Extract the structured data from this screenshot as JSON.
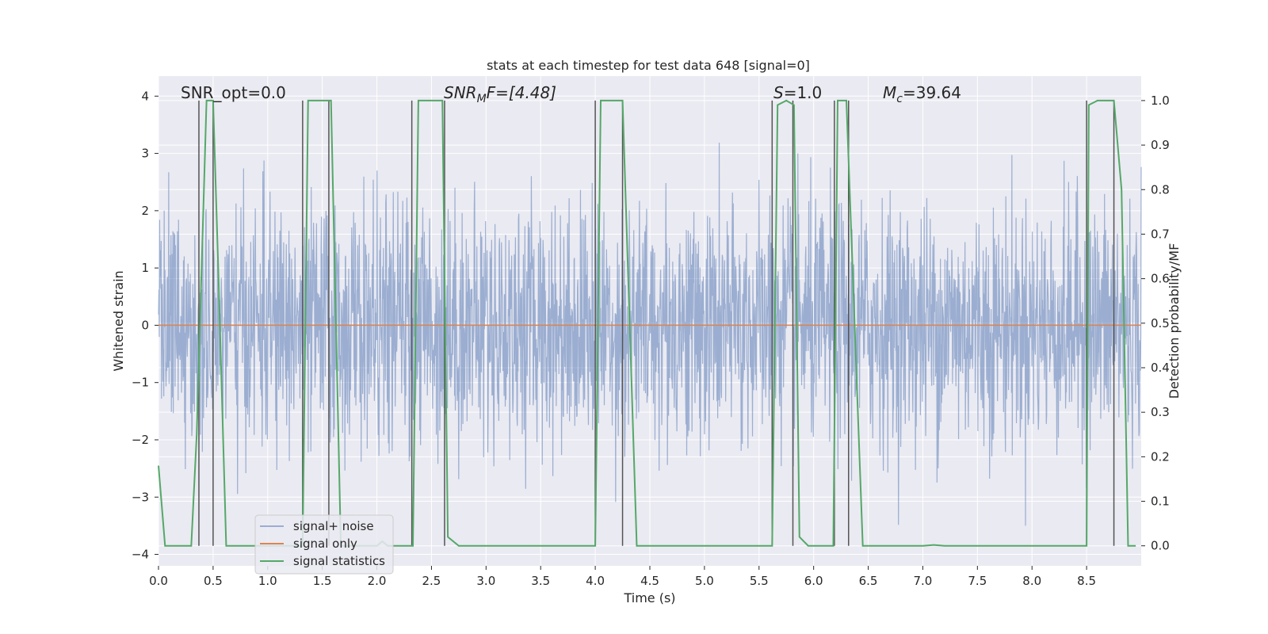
{
  "chart_data": {
    "type": "line",
    "title": "stats at each timestep for test data 648 [signal=0]",
    "xlabel": "Time (s)",
    "ylabel": "Whitened strain",
    "ylabel_right": "Detection probability/MF",
    "xlim": [
      0.0,
      9.0
    ],
    "ylim": [
      -4.2,
      4.35
    ],
    "ylim_right": [
      -0.045,
      1.055
    ],
    "x_ticks": [
      "0.0",
      "0.5",
      "1.0",
      "1.5",
      "2.0",
      "2.5",
      "3.0",
      "3.5",
      "4.0",
      "4.5",
      "5.0",
      "5.5",
      "6.0",
      "6.5",
      "7.0",
      "7.5",
      "8.0",
      "8.5"
    ],
    "y_ticks": [
      "4",
      "3",
      "2",
      "1",
      "0",
      "−1",
      "−2",
      "−3",
      "−4"
    ],
    "y_ticks_right": [
      "1.0",
      "0.9",
      "0.8",
      "0.7",
      "0.6",
      "0.5",
      "0.4",
      "0.3",
      "0.2",
      "0.1",
      "0.0"
    ],
    "grid": true,
    "legend_position": "lower-left",
    "annotations": {
      "snr_opt": "SNR_opt=0.0",
      "snr_mf_main": "SNR",
      "snr_mf_sub": "M",
      "snr_mf_rest": "F=[4.48]",
      "s_main": "S",
      "s_rest": "=1.0",
      "mc_main": "M",
      "mc_sub": "c",
      "mc_rest": "=39.64"
    },
    "series": [
      {
        "name": "signal+ noise",
        "color": "#4c72b0",
        "description_values": "whitened noise, roughly within [-3.5, 3.6]"
      },
      {
        "name": "signal only",
        "color": "#dd8452",
        "values": "constant 0"
      },
      {
        "name": "signal statistics",
        "color": "#55a868",
        "x": [
          0.0,
          0.06,
          0.1,
          0.3,
          0.35,
          0.44,
          0.5,
          0.55,
          0.62,
          1.0,
          1.32,
          1.37,
          1.58,
          1.67,
          2.0,
          2.05,
          2.1,
          2.33,
          2.38,
          2.6,
          2.65,
          2.75,
          4.0,
          4.05,
          4.25,
          4.38,
          4.5,
          5.62,
          5.67,
          5.75,
          5.82,
          5.87,
          5.95,
          6.18,
          6.22,
          6.3,
          6.45,
          7.0,
          7.1,
          7.2,
          8.5,
          8.52,
          8.6,
          8.75,
          8.82,
          8.88,
          8.95
        ],
        "y": [
          0.18,
          0.0,
          0.0,
          0.0,
          0.25,
          1.0,
          1.0,
          0.6,
          0.0,
          0.0,
          0.0,
          1.0,
          1.0,
          0.0,
          0.0,
          0.01,
          0.0,
          0.0,
          1.0,
          1.0,
          0.02,
          0.0,
          0.0,
          1.0,
          1.0,
          0.0,
          0.0,
          0.0,
          0.99,
          1.0,
          0.99,
          0.02,
          0.0,
          0.0,
          1.0,
          1.0,
          0.0,
          0.0,
          0.002,
          0.0,
          0.0,
          0.99,
          1.0,
          1.0,
          0.8,
          0.0,
          0.0
        ]
      }
    ],
    "vertical_lines_x": [
      0.37,
      0.5,
      1.32,
      1.56,
      2.32,
      2.62,
      4.0,
      4.25,
      5.62,
      5.81,
      6.19,
      6.32,
      8.5,
      8.75
    ]
  },
  "colors": {
    "plot_bg": "#eaeaf2",
    "grid": "#ffffff",
    "vline": "#555555"
  }
}
